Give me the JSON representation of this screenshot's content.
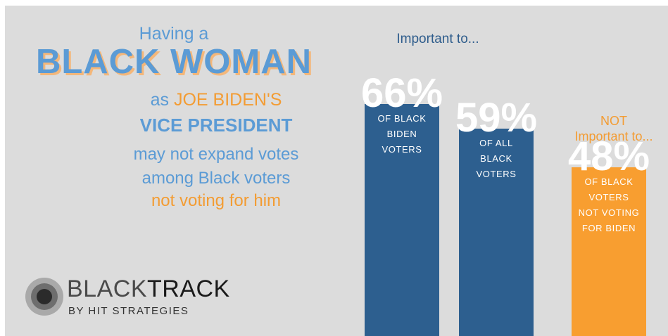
{
  "headline": {
    "line1": "Having a",
    "line2": "BLACK WOMAN",
    "line3a": "as ",
    "line3b": "JOE BIDEN'S",
    "line4": "VICE PRESIDENT",
    "line5": "may not expand votes",
    "line6": "among Black voters",
    "line7": "not voting for him"
  },
  "logo": {
    "word_black": "BLACK",
    "word_track": "TRACK",
    "sub": "BY HIT STRATEGIES",
    "icon": "concentric-circles-icon"
  },
  "colors": {
    "blue_bar": "#2d5f8f",
    "orange_bar": "#f89e30",
    "headline_blue": "#5b9bd5",
    "headline_orange": "#f39c33",
    "background": "#dcdcdc"
  },
  "chart_data": {
    "type": "bar",
    "title": "Important to...",
    "annotation": [
      "NOT",
      "Important to..."
    ],
    "categories": [
      "OF BLACK BIDEN VOTERS",
      "OF ALL BLACK VOTERS",
      "OF BLACK VOTERS NOT VOTING FOR BIDEN"
    ],
    "values": [
      66,
      59,
      48
    ],
    "value_labels": [
      "66%",
      "59%",
      "48%"
    ],
    "category_lines": [
      [
        "OF BLACK",
        "BIDEN",
        "VOTERS"
      ],
      [
        "OF ALL",
        "BLACK",
        "VOTERS"
      ],
      [
        "OF BLACK",
        "VOTERS",
        "NOT VOTING",
        "FOR BIDEN"
      ]
    ],
    "bar_colors": [
      "#2d5f8f",
      "#2d5f8f",
      "#f89e30"
    ],
    "ylim": [
      0,
      100
    ],
    "grid": false,
    "legend": "none"
  }
}
